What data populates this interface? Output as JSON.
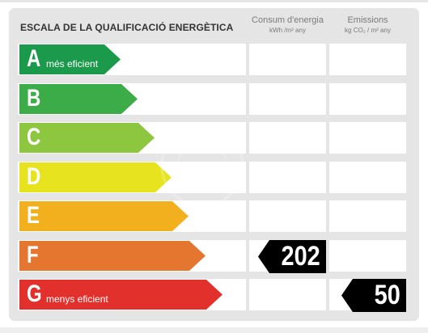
{
  "header": {
    "title": "ESCALA DE LA QUALIFICACIÓ ENERGÈTICA",
    "consum_title": "Consum d'energia",
    "consum_unit": "kWh /m² any",
    "emissions_title": "Emissions",
    "emissions_unit": "kg CO₂ / m² any"
  },
  "ratings": [
    {
      "letter": "A",
      "label": "més eficient",
      "color": "#1b9a4b"
    },
    {
      "letter": "B",
      "label": "",
      "color": "#3bac47"
    },
    {
      "letter": "C",
      "label": "",
      "color": "#8dc63f"
    },
    {
      "letter": "D",
      "label": "",
      "color": "#e7e41f"
    },
    {
      "letter": "E",
      "label": "",
      "color": "#f2b01e"
    },
    {
      "letter": "F",
      "label": "",
      "color": "#e57630"
    },
    {
      "letter": "G",
      "label": "menys eficient",
      "color": "#e2312d"
    }
  ],
  "consum": {
    "rating": "F",
    "value": "202"
  },
  "emissions": {
    "rating": "G",
    "value": "50"
  },
  "colors": {
    "indicator": "#000000",
    "panel": "#e5e5e5"
  }
}
